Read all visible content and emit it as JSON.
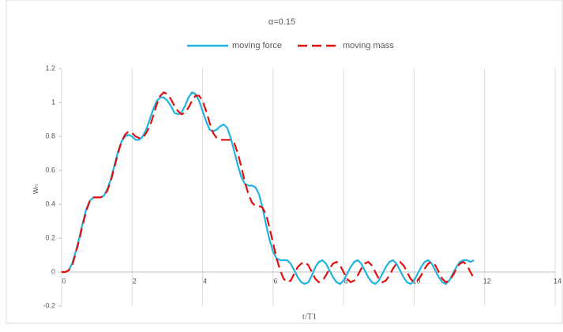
{
  "chart_data": {
    "type": "line",
    "title": "α=0.15",
    "xlabel": "t/T1",
    "ylabel": "wₙ",
    "x": [
      0,
      0.1,
      0.2,
      0.3,
      0.4,
      0.5,
      0.6,
      0.7,
      0.8,
      0.9,
      1,
      1.1,
      1.2,
      1.3,
      1.4,
      1.5,
      1.6,
      1.7,
      1.8,
      1.9,
      2,
      2.1,
      2.2,
      2.3,
      2.4,
      2.5,
      2.6,
      2.7,
      2.8,
      2.9,
      3,
      3.1,
      3.2,
      3.3,
      3.4,
      3.5,
      3.6,
      3.7,
      3.8,
      3.9,
      4,
      4.1,
      4.2,
      4.3,
      4.4,
      4.5,
      4.6,
      4.7,
      4.8,
      4.9,
      5,
      5.1,
      5.2,
      5.3,
      5.4,
      5.5,
      5.6,
      5.7,
      5.8,
      5.9,
      6,
      6.1,
      6.2,
      6.3,
      6.4,
      6.5,
      6.6,
      6.7,
      6.8,
      6.9,
      7,
      7.1,
      7.2,
      7.3,
      7.4,
      7.5,
      7.6,
      7.7,
      7.8,
      7.9,
      8,
      8.1,
      8.2,
      8.3,
      8.4,
      8.5,
      8.6,
      8.7,
      8.8,
      8.9,
      9,
      9.1,
      9.2,
      9.3,
      9.4,
      9.5,
      9.6,
      9.7,
      9.8,
      9.9,
      10,
      10.1,
      10.2,
      10.3,
      10.4,
      10.5,
      10.6,
      10.7,
      10.8,
      10.9,
      11,
      11.1,
      11.2,
      11.3,
      11.4,
      11.5,
      11.6,
      11.7
    ],
    "series": [
      {
        "name": "moving force",
        "color": "#1fb3e0",
        "dash": "solid",
        "values": [
          0,
          0,
          0.01,
          0.05,
          0.12,
          0.2,
          0.29,
          0.37,
          0.42,
          0.44,
          0.44,
          0.44,
          0.45,
          0.49,
          0.55,
          0.63,
          0.71,
          0.77,
          0.8,
          0.81,
          0.8,
          0.78,
          0.78,
          0.8,
          0.84,
          0.9,
          0.96,
          1.01,
          1.03,
          1.03,
          1.01,
          0.98,
          0.94,
          0.93,
          0.94,
          0.98,
          1.03,
          1.06,
          1.05,
          1.01,
          0.95,
          0.89,
          0.84,
          0.83,
          0.84,
          0.86,
          0.87,
          0.85,
          0.79,
          0.71,
          0.63,
          0.56,
          0.52,
          0.51,
          0.51,
          0.5,
          0.46,
          0.38,
          0.28,
          0.19,
          0.12,
          0.08,
          0.07,
          0.07,
          0.07,
          0.05,
          0.01,
          -0.03,
          -0.06,
          -0.07,
          -0.06,
          -0.02,
          0.03,
          0.06,
          0.07,
          0.05,
          0.01,
          -0.03,
          -0.06,
          -0.07,
          -0.05,
          -0.01,
          0.03,
          0.06,
          0.07,
          0.05,
          0.01,
          -0.03,
          -0.06,
          -0.07,
          -0.05,
          -0.01,
          0.03,
          0.06,
          0.07,
          0.05,
          0.01,
          -0.03,
          -0.06,
          -0.07,
          -0.05,
          -0.01,
          0.03,
          0.06,
          0.07,
          0.05,
          0.01,
          -0.03,
          -0.06,
          -0.07,
          -0.05,
          -0.01,
          0.03,
          0.06,
          0.07,
          0.07,
          0.06,
          0.07
        ]
      },
      {
        "name": "moving mass",
        "color": "#e01010",
        "dash": "dashed",
        "values": [
          0,
          0,
          0.01,
          0.04,
          0.11,
          0.19,
          0.28,
          0.36,
          0.42,
          0.44,
          0.44,
          0.44,
          0.45,
          0.48,
          0.54,
          0.62,
          0.7,
          0.77,
          0.81,
          0.83,
          0.82,
          0.8,
          0.79,
          0.79,
          0.82,
          0.86,
          0.92,
          0.99,
          1.04,
          1.06,
          1.05,
          1.02,
          0.98,
          0.95,
          0.93,
          0.94,
          0.97,
          1.01,
          1.04,
          1.04,
          1.01,
          0.95,
          0.88,
          0.82,
          0.79,
          0.78,
          0.78,
          0.78,
          0.78,
          0.76,
          0.7,
          0.62,
          0.53,
          0.46,
          0.41,
          0.39,
          0.39,
          0.38,
          0.34,
          0.26,
          0.17,
          0.08,
          0.01,
          -0.04,
          -0.06,
          -0.05,
          -0.01,
          0.03,
          0.05,
          0.06,
          0.04,
          0,
          -0.04,
          -0.06,
          -0.05,
          -0.02,
          0.02,
          0.05,
          0.06,
          0.04,
          0,
          -0.04,
          -0.06,
          -0.05,
          -0.02,
          0.02,
          0.05,
          0.06,
          0.04,
          0,
          -0.04,
          -0.06,
          -0.05,
          -0.02,
          0.02,
          0.05,
          0.06,
          0.04,
          0,
          -0.04,
          -0.06,
          -0.05,
          -0.02,
          0.02,
          0.05,
          0.06,
          0.04,
          0,
          -0.04,
          -0.06,
          -0.05,
          -0.02,
          0.02,
          0.05,
          0.06,
          0.04,
          0,
          -0.04
        ]
      }
    ],
    "xlim": [
      0,
      14
    ],
    "xticks": [
      0,
      2,
      4,
      6,
      8,
      10,
      12,
      14
    ],
    "ylim": [
      -0.2,
      1.2
    ],
    "yticks": [
      -0.2,
      0,
      0.2,
      0.4,
      0.6,
      0.8,
      1,
      1.2
    ],
    "grid": true,
    "legend": "top"
  }
}
